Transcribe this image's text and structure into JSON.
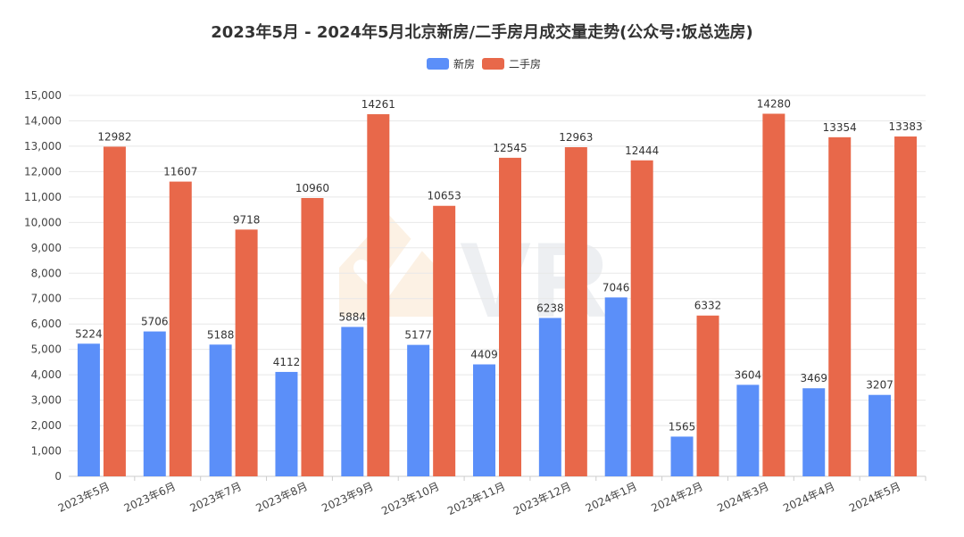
{
  "chart_data": {
    "type": "bar",
    "title": "2023年5月 - 2024年5月北京新房/二手房月成交量走势(公众号:饭总选房)",
    "categories": [
      "2023年5月",
      "2023年6月",
      "2023年7月",
      "2023年8月",
      "2023年9月",
      "2023年10月",
      "2023年11月",
      "2023年12月",
      "2024年1月",
      "2024年2月",
      "2024年3月",
      "2024年4月",
      "2024年5月"
    ],
    "series": [
      {
        "name": "新房",
        "color": "#5b8ff9",
        "values": [
          5224,
          5706,
          5188,
          4112,
          5884,
          5177,
          4409,
          6238,
          7046,
          1565,
          3604,
          3469,
          3207
        ]
      },
      {
        "name": "二手房",
        "color": "#e8684a",
        "values": [
          12982,
          11607,
          9718,
          10960,
          14261,
          10653,
          12545,
          12963,
          12444,
          6332,
          14280,
          13354,
          13383
        ]
      }
    ],
    "ylim": [
      0,
      15000
    ],
    "ytick_step": 1000,
    "ytick_labels": [
      "0",
      "1,000",
      "2,000",
      "3,000",
      "4,000",
      "5,000",
      "6,000",
      "7,000",
      "8,000",
      "9,000",
      "10,000",
      "11,000",
      "12,000",
      "13,000",
      "14,000",
      "15,000"
    ],
    "grid": true,
    "legend_position": "top-center",
    "watermark": "VR"
  }
}
